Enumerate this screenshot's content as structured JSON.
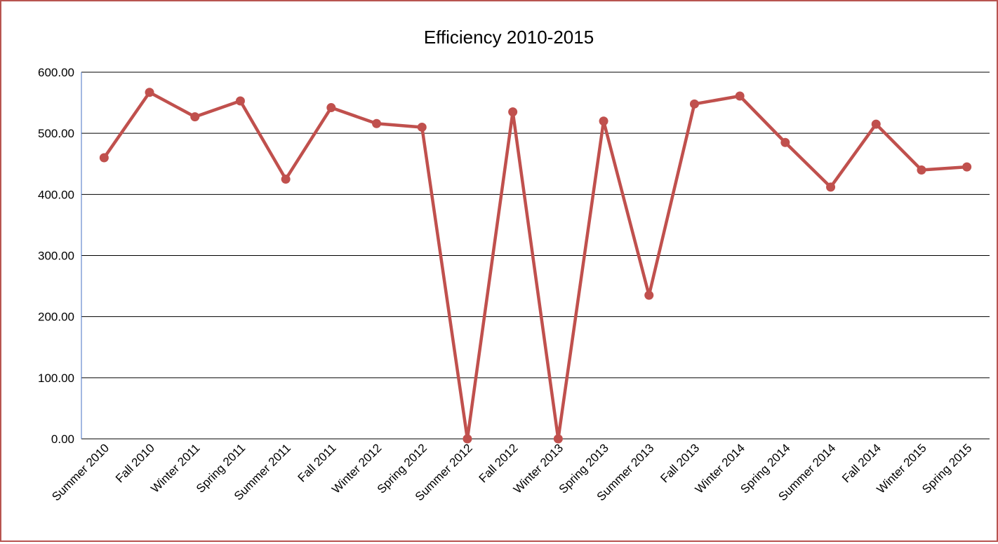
{
  "colors": {
    "series": "#c0504d",
    "border": "#b85450",
    "gridline": "#000000",
    "axis_line": "#4472c4"
  },
  "chart_data": {
    "type": "line",
    "title": "Efficiency 2010-2015",
    "xlabel": "",
    "ylabel": "",
    "ylim": [
      0,
      600
    ],
    "y_ticks": [
      "0.00",
      "100.00",
      "200.00",
      "300.00",
      "400.00",
      "500.00",
      "600.00"
    ],
    "grid": true,
    "legend": "none",
    "categories": [
      "Summer 2010",
      "Fall 2010",
      "Winter 2011",
      "Spring 2011",
      "Summer 2011",
      "Fall 2011",
      "Winter 2012",
      "Spring 2012",
      "Summer 2012",
      "Fall 2012",
      "Winter 2013",
      "Spring 2013",
      "Summer 2013",
      "Fall 2013",
      "Winter 2014",
      "Spring 2014",
      "Summer 2014",
      "Fall 2014",
      "Winter 2015",
      "Spring 2015"
    ],
    "series": [
      {
        "values": [
          460,
          567,
          527,
          553,
          425,
          542,
          516,
          510,
          0,
          535,
          0,
          520,
          235,
          548,
          561,
          485,
          412,
          515,
          440,
          445
        ]
      }
    ]
  }
}
